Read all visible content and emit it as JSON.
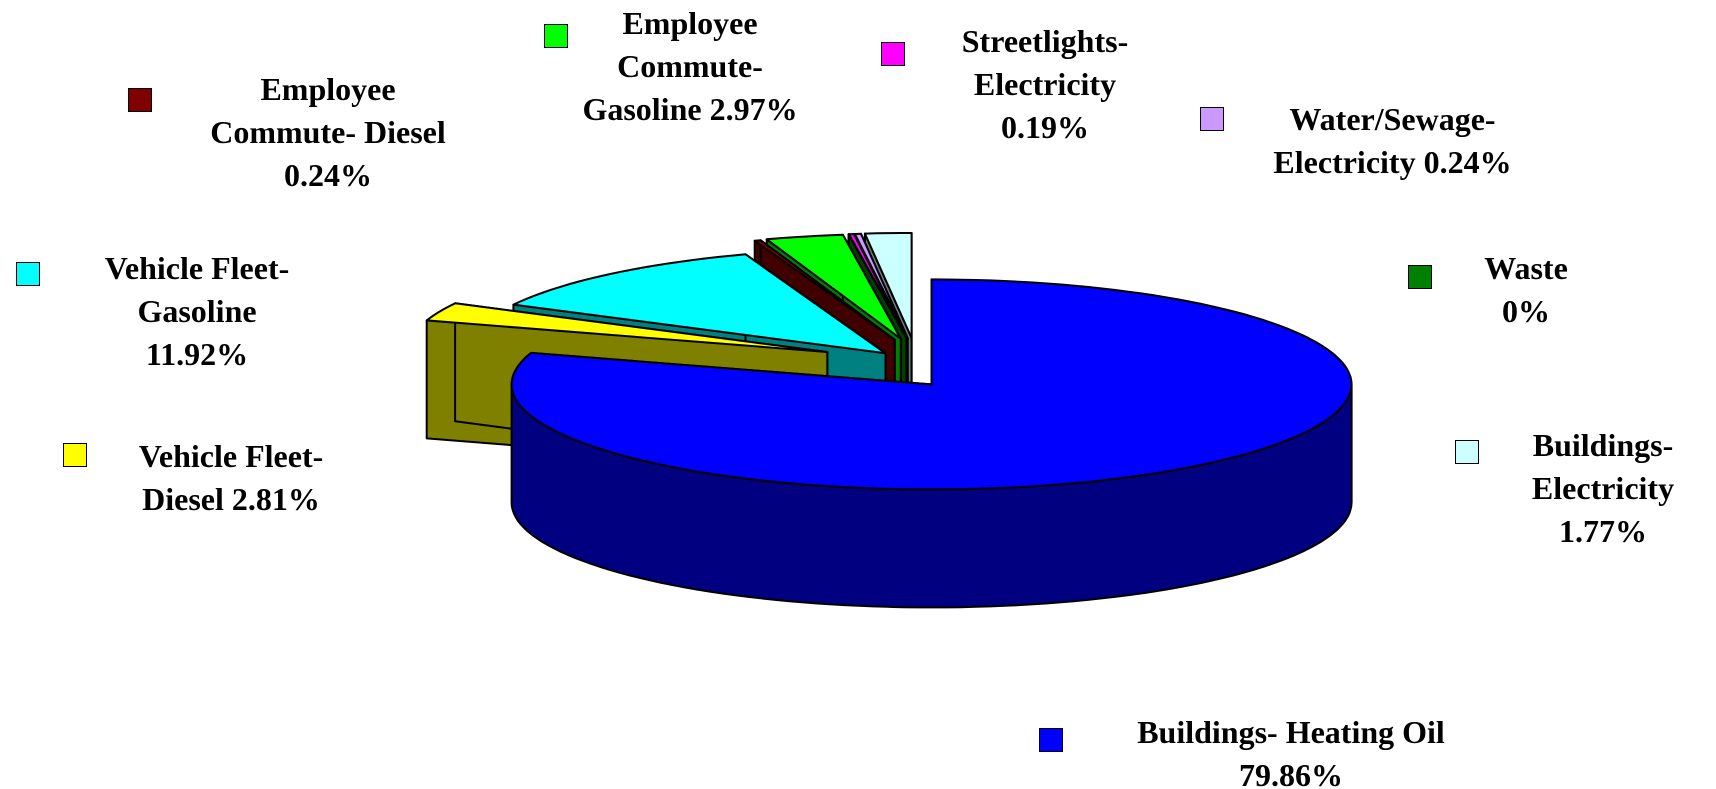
{
  "chart_data": {
    "type": "pie",
    "three_d": true,
    "categories": [
      "Buildings- Heating Oil",
      "Vehicle Fleet- Diesel",
      "Vehicle Fleet- Gasoline",
      "Employee Commute- Diesel",
      "Employee Commute- Gasoline",
      "Waste",
      "Streetlights- Electricity",
      "Water/Sewage- Electricity",
      "Buildings- Electricity"
    ],
    "values": [
      79.86,
      2.81,
      11.92,
      0.24,
      2.97,
      0,
      0.19,
      0.24,
      1.77
    ],
    "value_labels": [
      "79.86%",
      "2.81%",
      "11.92%",
      "0.24%",
      "2.97%",
      "0%",
      "0.19%",
      "0.24%",
      "1.77%"
    ],
    "colors": [
      "#0000ff",
      "#ffff00",
      "#00ffff",
      "#800000",
      "#00ff00",
      "#008000",
      "#ff00ff",
      "#cc99ff",
      "#ccffff"
    ]
  }
}
